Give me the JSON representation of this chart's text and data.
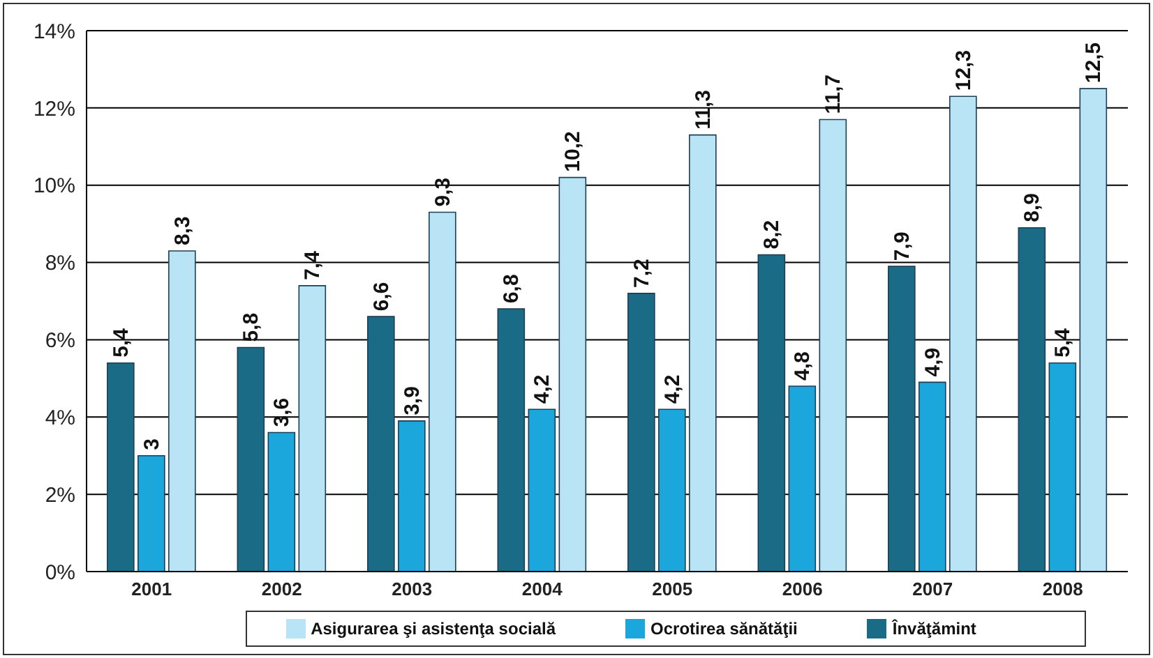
{
  "chart_data": {
    "type": "bar",
    "categories": [
      "2001",
      "2002",
      "2003",
      "2004",
      "2005",
      "2006",
      "2007",
      "2008"
    ],
    "series": [
      {
        "name": "Învăţămint",
        "color": "#1a6b86",
        "values": [
          5.4,
          5.8,
          6.6,
          6.8,
          7.2,
          8.2,
          7.9,
          8.9
        ],
        "value_labels": [
          "5,4",
          "5,8",
          "6,6",
          "6,8",
          "7,2",
          "8,2",
          "7,9",
          "8,9"
        ]
      },
      {
        "name": "Ocrotirea sănătăţii",
        "color": "#1ba6dc",
        "values": [
          3,
          3.6,
          3.9,
          4.2,
          4.2,
          4.8,
          4.9,
          5.4
        ],
        "value_labels": [
          "3",
          "3,6",
          "3,9",
          "4,2",
          "4,2",
          "4,8",
          "4,9",
          "5,4"
        ]
      },
      {
        "name": "Asigurarea şi asistenţa socială",
        "color": "#b9e4f5",
        "values": [
          8.3,
          7.4,
          9.3,
          10.2,
          11.3,
          11.7,
          12.3,
          12.5
        ],
        "value_labels": [
          "8,3",
          "7,4",
          "9,3",
          "10,2",
          "11,3",
          "11,7",
          "12,3",
          "12,5"
        ]
      }
    ],
    "ylim": [
      0,
      14
    ],
    "yticks": [
      {
        "value": 0,
        "label": "0%"
      },
      {
        "value": 2,
        "label": "2%"
      },
      {
        "value": 4,
        "label": "4%"
      },
      {
        "value": 6,
        "label": "6%"
      },
      {
        "value": 8,
        "label": "8%"
      },
      {
        "value": 10,
        "label": "10%"
      },
      {
        "value": 12,
        "label": "12%"
      },
      {
        "value": 14,
        "label": "14%"
      }
    ],
    "grid": "y",
    "legend": "bottom"
  }
}
